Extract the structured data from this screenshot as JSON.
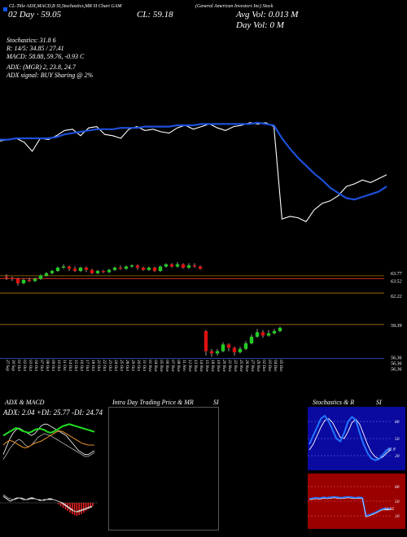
{
  "header": {
    "top_line": "CL-Title ADX,MACD,B SI,Stochastics,MR SI Chart GAM",
    "company": "(General American Investors Inc) Stock",
    "date_line": "02 Day · 59.05",
    "close_label": "CL: 59.18",
    "avg_vol": "Avg Vol: 0.013  M",
    "day_vol": "Day Vol: 0   M",
    "stoch_line": "Stochastics: 31.8          6",
    "r_line": "R: 14/5: 34.85 / 27.41",
    "macd_line": "MACD: 58.88, 59.76, -0.93  C",
    "adx_line": "ADX:                    (MGR) 2, 23.8, 24.7",
    "adx_signal": "ADX  signal:                                  BUY Sharing @ 2%"
  },
  "price_levels": [
    "63.77",
    "63.52",
    "62.22",
    "59.39",
    "56.36",
    "56.36",
    "56.36"
  ],
  "date_labels": [
    "27 Sep",
    "30 Sep",
    "01 Oct",
    "02 Oct",
    "03 Oct",
    "04 Oct",
    "07 Oct",
    "08 Oct",
    "09 Oct",
    "10 Oct",
    "11 Oct",
    "14 Oct",
    "15 Oct",
    "16 Oct",
    "17 Oct",
    "18 Oct",
    "21 Oct",
    "22 Oct",
    "23 Oct",
    "24 Oct",
    "25 Oct",
    "28 Oct",
    "29 Oct",
    "30 Oct",
    "31 Oct",
    "01 Nov",
    "04 Nov",
    "05 Nov",
    "06 Nov",
    "07 Nov",
    "08 Nov",
    "11 Nov",
    "12 Nov",
    "13 Nov",
    "14 Nov",
    "15 Nov",
    "18 Nov",
    "19 Nov",
    "20 Nov",
    "21 Nov",
    "22 Nov",
    "25 Nov",
    "26 Nov",
    "27 Nov",
    "29 Nov",
    "02 Dec",
    "03 Dec",
    "04 Dec",
    "05 Dec"
  ],
  "bottom_panels": {
    "adx_title": "ADX  & MACD",
    "adx_values": "ADX: 2.04  +DI: 25.77 -DI: 24.74",
    "intraday_title": "Intra Day Trading Price  & MR",
    "intraday_si": "SI",
    "stoch_title": "Stochastics & R",
    "stoch_si": "SI",
    "stoch_ticks": [
      "80",
      "50",
      "20"
    ],
    "stoch_value": "31.8",
    "rsi_ticks": [
      "80",
      "50",
      "20"
    ],
    "rsi_value": "34.85"
  },
  "chart_data": [
    {
      "type": "line",
      "title": "Price vs moving average",
      "series": [
        {
          "name": "price",
          "color": "#ffffff",
          "values": [
            63.8,
            63.9,
            64.0,
            63.7,
            63.0,
            64.0,
            63.9,
            64.2,
            64.6,
            64.7,
            64.2,
            64.8,
            64.9,
            64.3,
            64.2,
            64.0,
            64.7,
            64.9,
            64.6,
            64.7,
            64.5,
            64.4,
            64.8,
            65.0,
            64.7,
            64.9,
            65.1,
            64.8,
            64.6,
            64.9,
            65.0,
            65.2,
            65.1,
            65.2,
            64.9,
            57.8,
            58.0,
            57.9,
            57.6,
            58.5,
            59.0,
            59.2,
            59.6,
            60.3,
            60.5,
            60.8,
            60.6,
            60.9,
            61.2
          ]
        },
        {
          "name": "moving-average",
          "color": "#1d4fd8",
          "values": [
            63.9,
            63.9,
            64.0,
            64.0,
            64.0,
            64.0,
            64.0,
            64.1,
            64.3,
            64.4,
            64.5,
            64.6,
            64.7,
            64.7,
            64.7,
            64.8,
            64.8,
            64.8,
            64.9,
            64.9,
            64.9,
            64.9,
            65.0,
            65.0,
            65.0,
            65.1,
            65.1,
            65.1,
            65.1,
            65.1,
            65.1,
            65.1,
            65.2,
            65.1,
            65.0,
            64.0,
            63.2,
            62.5,
            61.9,
            61.3,
            60.8,
            60.2,
            59.8,
            59.4,
            59.3,
            59.5,
            59.7,
            59.9,
            60.3
          ]
        }
      ]
    },
    {
      "type": "candlestick",
      "title": "Daily candles",
      "candles": [
        {
          "o": 63.7,
          "c": 63.6,
          "h": 63.9,
          "l": 63.4
        },
        {
          "o": 63.6,
          "c": 63.5,
          "h": 63.7,
          "l": 63.3
        },
        {
          "o": 63.5,
          "c": 63.1,
          "h": 63.6,
          "l": 62.9
        },
        {
          "o": 63.1,
          "c": 63.4,
          "h": 63.5,
          "l": 63.0
        },
        {
          "o": 63.4,
          "c": 63.3,
          "h": 63.6,
          "l": 63.2
        },
        {
          "o": 63.3,
          "c": 63.5,
          "h": 63.6,
          "l": 63.2
        },
        {
          "o": 63.5,
          "c": 63.8,
          "h": 63.9,
          "l": 63.4
        },
        {
          "o": 63.8,
          "c": 64.0,
          "h": 64.1,
          "l": 63.7
        },
        {
          "o": 64.0,
          "c": 64.2,
          "h": 64.3,
          "l": 63.9
        },
        {
          "o": 64.2,
          "c": 64.5,
          "h": 64.6,
          "l": 64.1
        },
        {
          "o": 64.5,
          "c": 64.6,
          "h": 64.8,
          "l": 64.4
        },
        {
          "o": 64.6,
          "c": 64.4,
          "h": 64.7,
          "l": 64.2
        },
        {
          "o": 64.4,
          "c": 64.2,
          "h": 64.6,
          "l": 64.1
        },
        {
          "o": 64.2,
          "c": 64.5,
          "h": 64.6,
          "l": 64.1
        },
        {
          "o": 64.5,
          "c": 64.3,
          "h": 64.6,
          "l": 64.1
        },
        {
          "o": 64.3,
          "c": 64.0,
          "h": 64.4,
          "l": 63.9
        },
        {
          "o": 64.0,
          "c": 64.2,
          "h": 64.3,
          "l": 63.9
        },
        {
          "o": 64.2,
          "c": 64.1,
          "h": 64.3,
          "l": 64.0
        },
        {
          "o": 64.1,
          "c": 64.3,
          "h": 64.4,
          "l": 64.0
        },
        {
          "o": 64.3,
          "c": 64.5,
          "h": 64.6,
          "l": 64.2
        },
        {
          "o": 64.5,
          "c": 64.4,
          "h": 64.7,
          "l": 64.3
        },
        {
          "o": 64.4,
          "c": 64.6,
          "h": 64.7,
          "l": 64.3
        },
        {
          "o": 64.6,
          "c": 64.7,
          "h": 64.8,
          "l": 64.5
        },
        {
          "o": 64.7,
          "c": 64.5,
          "h": 64.8,
          "l": 64.3
        },
        {
          "o": 64.5,
          "c": 64.3,
          "h": 64.6,
          "l": 64.2
        },
        {
          "o": 64.3,
          "c": 64.5,
          "h": 64.6,
          "l": 64.2
        },
        {
          "o": 64.5,
          "c": 64.2,
          "h": 64.6,
          "l": 64.1
        },
        {
          "o": 64.2,
          "c": 64.6,
          "h": 64.7,
          "l": 64.1
        },
        {
          "o": 64.6,
          "c": 64.8,
          "h": 64.9,
          "l": 64.5
        },
        {
          "o": 64.8,
          "c": 64.6,
          "h": 64.9,
          "l": 64.5
        },
        {
          "o": 64.6,
          "c": 64.8,
          "h": 65.0,
          "l": 64.5
        },
        {
          "o": 64.8,
          "c": 64.5,
          "h": 64.9,
          "l": 64.4
        },
        {
          "o": 64.5,
          "c": 64.7,
          "h": 64.9,
          "l": 64.4
        },
        {
          "o": 64.7,
          "c": 64.6,
          "h": 64.9,
          "l": 64.5
        },
        {
          "o": 64.6,
          "c": 64.4,
          "h": 64.7,
          "l": 64.3
        },
        {
          "o": 58.8,
          "c": 57.0,
          "h": 58.9,
          "l": 56.6
        },
        {
          "o": 57.0,
          "c": 56.8,
          "h": 57.2,
          "l": 56.5
        },
        {
          "o": 56.8,
          "c": 57.0,
          "h": 57.2,
          "l": 56.6
        },
        {
          "o": 57.0,
          "c": 57.6,
          "h": 57.8,
          "l": 56.9
        },
        {
          "o": 57.6,
          "c": 57.3,
          "h": 57.7,
          "l": 57.0
        },
        {
          "o": 57.3,
          "c": 56.9,
          "h": 57.4,
          "l": 56.6
        },
        {
          "o": 56.9,
          "c": 57.2,
          "h": 57.4,
          "l": 56.8
        },
        {
          "o": 57.2,
          "c": 57.7,
          "h": 57.9,
          "l": 57.1
        },
        {
          "o": 57.7,
          "c": 58.3,
          "h": 58.5,
          "l": 57.6
        },
        {
          "o": 58.3,
          "c": 58.7,
          "h": 59.0,
          "l": 58.2
        },
        {
          "o": 58.7,
          "c": 58.4,
          "h": 58.9,
          "l": 58.2
        },
        {
          "o": 58.4,
          "c": 58.6,
          "h": 58.9,
          "l": 58.3
        },
        {
          "o": 58.6,
          "c": 58.8,
          "h": 59.0,
          "l": 58.5
        },
        {
          "o": 58.8,
          "c": 59.1,
          "h": 59.2,
          "l": 58.7
        }
      ]
    }
  ]
}
